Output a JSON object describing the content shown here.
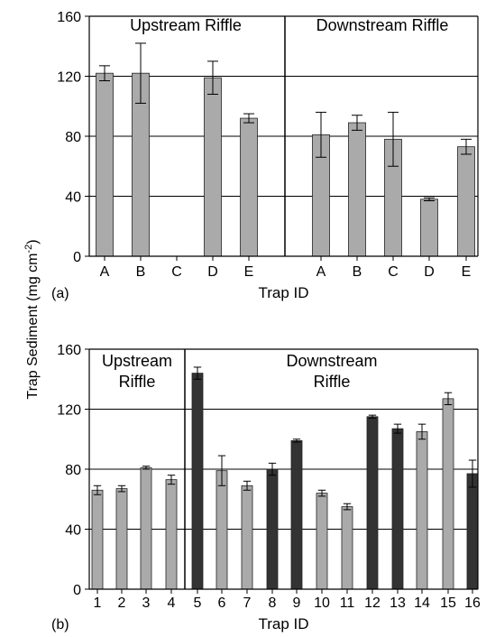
{
  "figure": {
    "ylabel": "Trap Sediment (mg cm",
    "ylabel_sup": "-2",
    "ylabel_close": ")"
  },
  "colors": {
    "light_bar": "#aaaaaa",
    "dark_bar": "#333333",
    "axis": "#000000"
  },
  "chart_data": [
    {
      "panel_label": "(a)",
      "type": "bar",
      "xlabel": "Trap ID",
      "ylim": [
        0,
        160
      ],
      "yticks": [
        "0",
        "40",
        "80",
        "120",
        "160"
      ],
      "grid": true,
      "groups": [
        "Upstream Riffle",
        "Downstream Riffle"
      ],
      "categories": [
        "A",
        "B",
        "C",
        "D",
        "E",
        "A",
        "B",
        "C",
        "D",
        "E"
      ],
      "values": [
        122,
        122,
        null,
        119,
        92,
        81,
        89,
        78,
        38,
        73
      ],
      "errors": [
        5,
        20,
        null,
        11,
        3,
        15,
        5,
        18,
        1,
        5
      ],
      "bar_colors": [
        "light",
        "light",
        "light",
        "light",
        "light",
        "light",
        "light",
        "light",
        "light",
        "light"
      ]
    },
    {
      "panel_label": "(b)",
      "type": "bar",
      "xlabel": "Trap ID",
      "ylim": [
        0,
        160
      ],
      "yticks": [
        "0",
        "40",
        "80",
        "120",
        "160"
      ],
      "grid": true,
      "groups": [
        "Upstream Riffle",
        "Downstream Riffle"
      ],
      "group_label_lines": [
        [
          "Upstream",
          "Riffle"
        ],
        [
          "Downstream",
          "Riffle"
        ]
      ],
      "categories": [
        "1",
        "2",
        "3",
        "4",
        "5",
        "6",
        "7",
        "8",
        "9",
        "10",
        "11",
        "12",
        "13",
        "14",
        "15",
        "16"
      ],
      "values": [
        66,
        67,
        81,
        73,
        144,
        79,
        69,
        80,
        99,
        64,
        55,
        115,
        107,
        105,
        127,
        77
      ],
      "errors": [
        3,
        2,
        1,
        3,
        4,
        10,
        3,
        4,
        1,
        2,
        2,
        1,
        3,
        5,
        4,
        9
      ],
      "bar_colors": [
        "light",
        "light",
        "light",
        "light",
        "dark",
        "light",
        "light",
        "dark",
        "dark",
        "light",
        "light",
        "dark",
        "dark",
        "light",
        "light",
        "dark"
      ]
    }
  ]
}
